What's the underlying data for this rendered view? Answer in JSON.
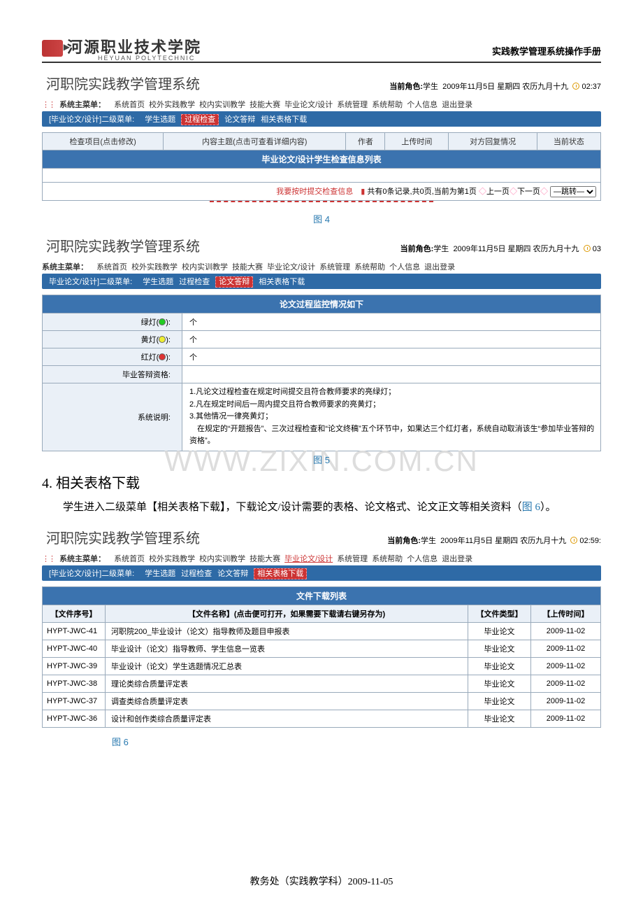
{
  "doc_header": {
    "inst_cn": "河源职业技术学院",
    "inst_en": "HEYUAN  POLYTECHNIC",
    "manual_title": "实践教学管理系统操作手册"
  },
  "shot1": {
    "sys_title": "河职院实践教学管理系统",
    "role_prefix": "当前角色:",
    "role_value": "学生",
    "date_text": "2009年11月5日 星期四 农历九月十九",
    "time_text": "02:37",
    "mainmenu_label": "系统主菜单：",
    "mainmenu_items": [
      "系统首页",
      "校外实践教学",
      "校内实训教学",
      "技能大赛",
      "毕业论文/设计",
      "系统管理",
      "系统帮助",
      "个人信息",
      "退出登录"
    ],
    "submenu_prefix": "[毕业论文/设计]二级菜单:",
    "submenu_items": [
      "学生选题",
      "过程检查",
      "论文答辩",
      "相关表格下载"
    ],
    "submenu_selected_index": 1,
    "table_title": "毕业论文/设计学生检查信息列表",
    "cols": [
      "检查项目(点击修改)",
      "内容主题(点击可查看详细内容)",
      "作者",
      "上传时间",
      "对方回复情况",
      "当前状态"
    ],
    "pager_submit": "我要按时提交检查信息",
    "pager_info_bar": "▮",
    "pager_info": "共有0条记录,共0页,当前为第1页",
    "pager_prev": "上一页",
    "pager_next": "下一页",
    "pager_jump_label": "—跳转—",
    "fig_label": "图 4"
  },
  "shot2": {
    "sys_title": "河职院实践教学管理系统",
    "role_prefix": "当前角色:",
    "role_value": "学生",
    "date_text": "2009年11月5日 星期四 农历九月十九",
    "time_text": "03",
    "mainmenu_label": "系统主菜单：",
    "mainmenu_items": [
      "系统首页",
      "校外实践教学",
      "校内实训教学",
      "技能大赛",
      "毕业论文/设计",
      "系统管理",
      "系统帮助",
      "个人信息",
      "退出登录"
    ],
    "submenu_prefix": "毕业论文/设计]二级菜单:",
    "submenu_items": [
      "学生选题",
      "过程检查",
      "论文答辩",
      "相关表格下载"
    ],
    "submenu_selected_index": 2,
    "table_title": "论文过程监控情况如下",
    "rows": [
      {
        "label": "绿灯(",
        "dot": "g",
        "after": "):",
        "val": "个"
      },
      {
        "label": "黄灯(",
        "dot": "y",
        "after": "):",
        "val": "个"
      },
      {
        "label": "红灯(",
        "dot": "r",
        "after": "):",
        "val": "个"
      }
    ],
    "qual_label": "毕业答辩资格:",
    "qual_val": "",
    "desc_label": "系统说明:",
    "desc_lines": [
      "1.凡论文过程检查在规定时间提交且符合教师要求的亮绿灯；",
      "2.凡在规定时间后一周内提交且符合教师要求的亮黄灯；",
      "3.其他情况一律亮黄灯；",
      "　在规定的“开题报告”、三次过程检查和“论文终稿”五个环节中，如果达三个红灯者，系统自动取消该生“参加毕业答辩的资格”。"
    ],
    "fig_label": "图 5",
    "watermark": "WWW.ZIXIN.COM.CN"
  },
  "section4": {
    "heading": "4.  相关表格下载",
    "para": "学生进入二级菜单【相关表格下载】，下载论文/设计需要的表格、论文格式、论文正文等相关资料（",
    "fig_ref": "图 6",
    "para_end": "）。"
  },
  "shot3": {
    "sys_title": "河职院实践教学管理系统",
    "role_prefix": "当前角色:",
    "role_value": "学生",
    "date_text": "2009年11月5日 星期四 农历九月十九",
    "time_text": "02:59:",
    "mainmenu_label": "系统主菜单：",
    "mainmenu_items": [
      "系统首页",
      "校外实践教学",
      "校内实训教学",
      "技能大赛",
      "毕业论文/设计",
      "系统管理",
      "系统帮助",
      "个人信息",
      "退出登录"
    ],
    "mainmenu_hot_index": 4,
    "submenu_prefix": "[毕业论文/设计]二级菜单:",
    "submenu_items": [
      "学生选题",
      "过程检查",
      "论文答辩",
      "相关表格下载"
    ],
    "submenu_selected_index": 3,
    "table_title": "文件下载列表",
    "cols": [
      "【文件序号】",
      "【文件名称】(点击便可打开，如果需要下载请右键另存为)",
      "【文件类型】",
      "【上传时间】"
    ],
    "rows": [
      [
        "HYPT-JWC-41",
        "河职院200_毕业设计（论文）指导教师及题目申报表",
        "毕业论文",
        "2009-11-02"
      ],
      [
        "HYPT-JWC-40",
        "毕业设计（论文）指导教师、学生信息一览表",
        "毕业论文",
        "2009-11-02"
      ],
      [
        "HYPT-JWC-39",
        "毕业设计（论文）学生选题情况汇总表",
        "毕业论文",
        "2009-11-02"
      ],
      [
        "HYPT-JWC-38",
        "理论类综合质量评定表",
        "毕业论文",
        "2009-11-02"
      ],
      [
        "HYPT-JWC-37",
        "调查类综合质量评定表",
        "毕业论文",
        "2009-11-02"
      ],
      [
        "HYPT-JWC-36",
        "设计和创作类综合质量评定表",
        "毕业论文",
        "2009-11-02"
      ]
    ],
    "fig_label": "图 6"
  },
  "footer": "教务处（实践教学科）2009-11-05"
}
